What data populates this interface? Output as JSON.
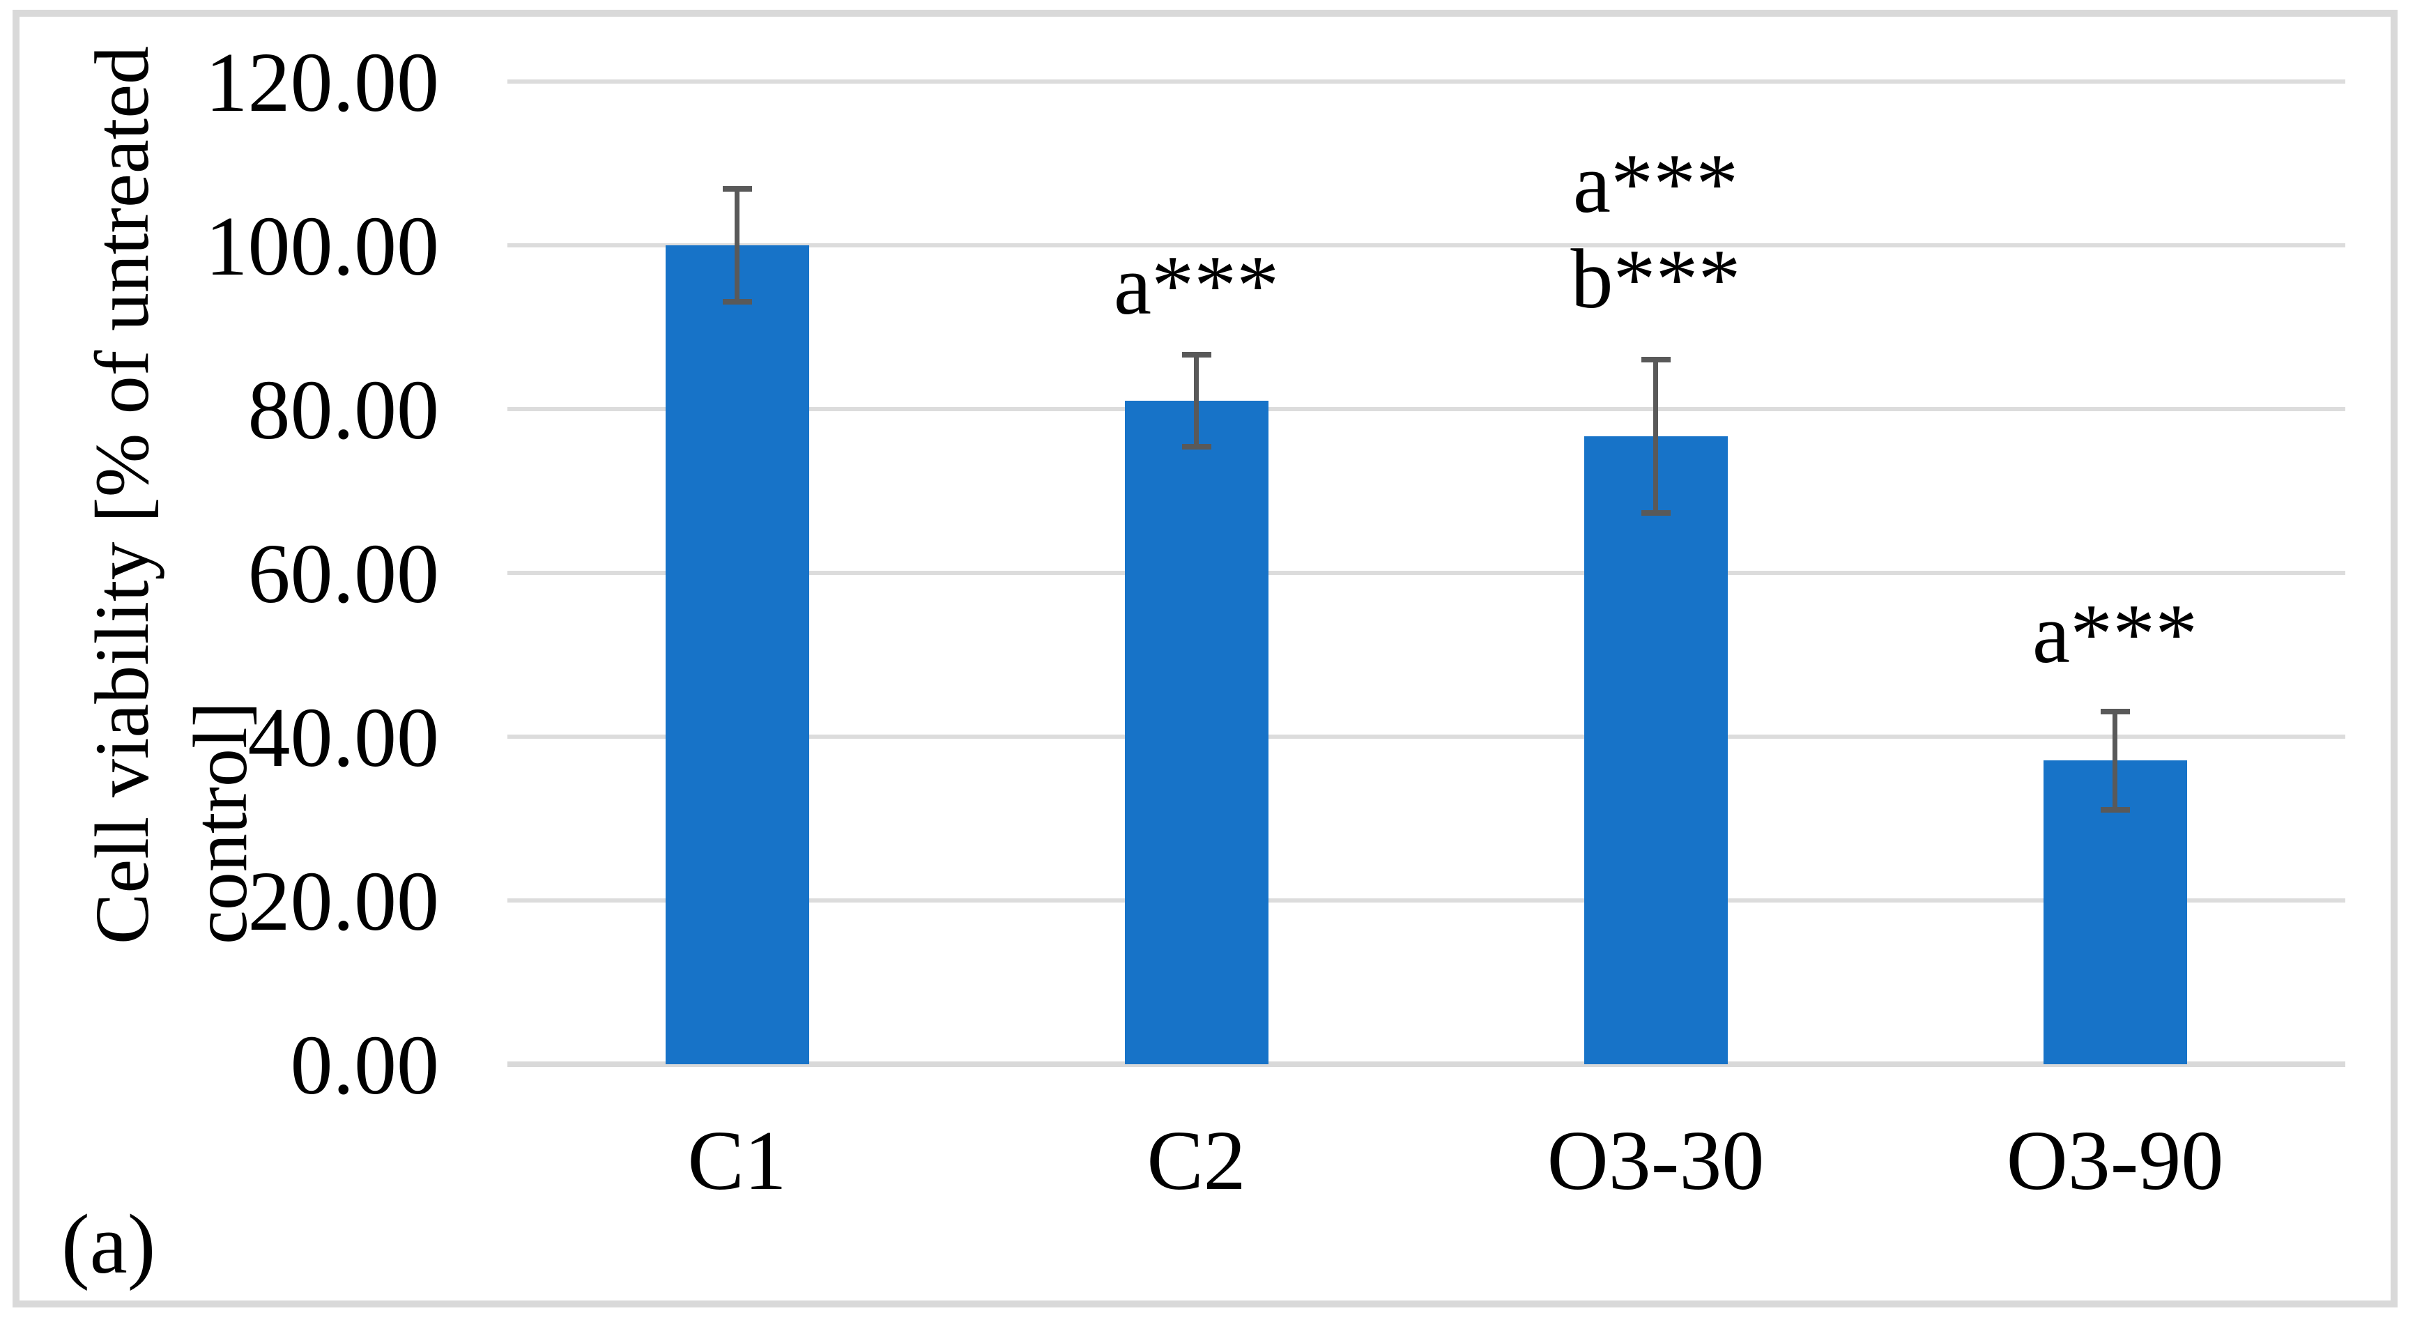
{
  "figure": {
    "corner_label": "(a)"
  },
  "chart_data": {
    "type": "bar",
    "title": "",
    "xlabel": "",
    "ylabel": "Cell viability [% of untreated control]",
    "ylabel_lines": [
      "Cell viability [% of untreated",
      "control]"
    ],
    "categories": [
      "C1",
      "C2",
      "O3-30",
      "O3-90"
    ],
    "values": [
      100.0,
      81.0,
      76.7,
      37.1
    ],
    "error_up": [
      7.2,
      6.0,
      9.7,
      6.3
    ],
    "error_down": [
      7.2,
      5.9,
      9.7,
      6.4
    ],
    "annotations": [
      [],
      [
        "a***"
      ],
      [
        "a***",
        "b***"
      ],
      [
        "a***"
      ]
    ],
    "yticks": [
      "120.00",
      "100.00",
      "80.00",
      "60.00",
      "40.00",
      "20.00",
      "0.00"
    ],
    "ytick_values": [
      120,
      100,
      80,
      60,
      40,
      20,
      0
    ],
    "ylim": [
      0,
      120
    ],
    "grid": true,
    "legend": "none",
    "colors": {
      "bar": "#1773C8",
      "error_bar": "#595959",
      "gridline": "#DCDCDC",
      "axis_line": "#D9D9D9",
      "frame": "#D9D9D9",
      "text": "#000000"
    }
  }
}
